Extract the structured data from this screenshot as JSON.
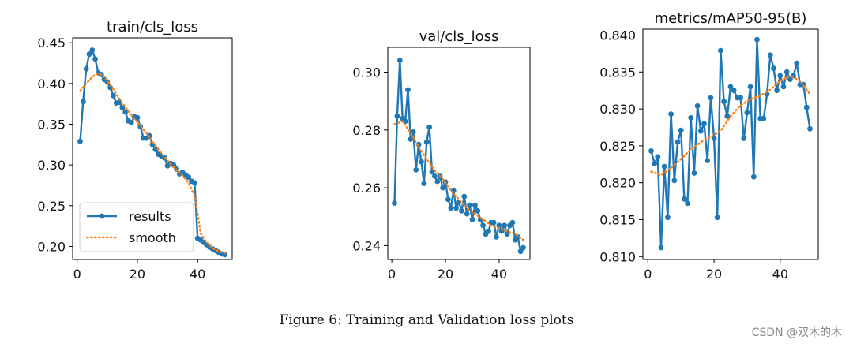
{
  "figure": {
    "caption": "Figure 6: Training and Validation loss plots",
    "watermark": "CSDN @双木的木"
  },
  "chart_data": [
    {
      "type": "line",
      "title": "train/cls_loss",
      "xlabel": "",
      "ylabel": "",
      "xlim": [
        -1.5,
        51.5
      ],
      "ylim": [
        0.184,
        0.456
      ],
      "xticks": [
        0,
        20,
        40
      ],
      "yticks": [
        0.2,
        0.25,
        0.3,
        0.35,
        0.4,
        0.45
      ],
      "ytick_labels": [
        "0.20",
        "0.25",
        "0.30",
        "0.35",
        "0.40",
        "0.45"
      ],
      "legend": {
        "position": "lower-left",
        "entries": [
          "results",
          "smooth"
        ]
      },
      "series": [
        {
          "name": "results",
          "style": "line-markers",
          "color": "#1f77b4",
          "x": [
            1,
            2,
            3,
            4,
            5,
            6,
            7,
            8,
            9,
            10,
            11,
            12,
            13,
            14,
            15,
            16,
            17,
            18,
            19,
            20,
            21,
            22,
            23,
            24,
            25,
            26,
            27,
            28,
            29,
            30,
            31,
            32,
            33,
            34,
            35,
            36,
            37,
            38,
            39,
            40,
            41,
            42,
            43,
            44,
            45,
            46,
            47,
            48,
            49
          ],
          "values": [
            0.329,
            0.378,
            0.418,
            0.436,
            0.441,
            0.43,
            0.413,
            0.411,
            0.405,
            0.402,
            0.395,
            0.385,
            0.376,
            0.377,
            0.37,
            0.365,
            0.354,
            0.352,
            0.359,
            0.358,
            0.347,
            0.333,
            0.333,
            0.336,
            0.325,
            0.319,
            0.313,
            0.311,
            0.309,
            0.299,
            0.302,
            0.3,
            0.295,
            0.289,
            0.291,
            0.288,
            0.285,
            0.28,
            0.278,
            0.21,
            0.208,
            0.205,
            0.202,
            0.199,
            0.197,
            0.195,
            0.193,
            0.191,
            0.19
          ]
        },
        {
          "name": "smooth",
          "style": "dotted",
          "color": "#ff7f0e",
          "x": [
            1,
            3,
            5,
            7,
            9,
            11,
            13,
            15,
            17,
            19,
            21,
            23,
            25,
            27,
            29,
            31,
            33,
            35,
            37,
            38,
            39,
            40,
            41,
            43,
            45,
            47,
            49
          ],
          "values": [
            0.391,
            0.4,
            0.408,
            0.413,
            0.408,
            0.399,
            0.387,
            0.376,
            0.366,
            0.357,
            0.348,
            0.339,
            0.329,
            0.319,
            0.31,
            0.301,
            0.294,
            0.287,
            0.278,
            0.27,
            0.262,
            0.24,
            0.216,
            0.205,
            0.198,
            0.194,
            0.192
          ]
        }
      ]
    },
    {
      "type": "line",
      "title": "val/cls_loss",
      "xlabel": "",
      "ylabel": "",
      "xlim": [
        -1.5,
        51.5
      ],
      "ylim": [
        0.2352,
        0.3086
      ],
      "xticks": [
        0,
        20,
        40
      ],
      "yticks": [
        0.24,
        0.26,
        0.28,
        0.3
      ],
      "ytick_labels": [
        "0.24",
        "0.26",
        "0.28",
        "0.30"
      ],
      "series": [
        {
          "name": "results",
          "style": "line-markers",
          "color": "#1f77b4",
          "x": [
            1,
            2,
            3,
            4,
            5,
            6,
            7,
            8,
            9,
            10,
            11,
            12,
            13,
            14,
            15,
            16,
            17,
            18,
            19,
            20,
            21,
            22,
            23,
            24,
            25,
            26,
            27,
            28,
            29,
            30,
            31,
            32,
            33,
            34,
            35,
            36,
            37,
            38,
            39,
            40,
            41,
            42,
            43,
            44,
            45,
            46,
            47,
            48,
            49
          ],
          "values": [
            0.2547,
            0.2848,
            0.3041,
            0.284,
            0.283,
            0.2939,
            0.2768,
            0.2793,
            0.2662,
            0.275,
            0.269,
            0.2615,
            0.2758,
            0.281,
            0.2655,
            0.264,
            0.2622,
            0.264,
            0.26,
            0.262,
            0.256,
            0.253,
            0.259,
            0.253,
            0.255,
            0.252,
            0.257,
            0.251,
            0.254,
            0.249,
            0.254,
            0.252,
            0.249,
            0.247,
            0.244,
            0.245,
            0.248,
            0.248,
            0.243,
            0.247,
            0.245,
            0.247,
            0.244,
            0.247,
            0.248,
            0.242,
            0.243,
            0.238,
            0.2393
          ]
        },
        {
          "name": "smooth",
          "style": "dotted",
          "color": "#ff7f0e",
          "x": [
            1,
            4,
            7,
            10,
            13,
            16,
            19,
            22,
            25,
            28,
            31,
            34,
            37,
            40,
            43,
            46,
            49
          ],
          "values": [
            0.282,
            0.283,
            0.279,
            0.274,
            0.27,
            0.266,
            0.263,
            0.259,
            0.256,
            0.253,
            0.251,
            0.249,
            0.247,
            0.246,
            0.245,
            0.244,
            0.242
          ]
        }
      ]
    },
    {
      "type": "line",
      "title": "metrics/mAP50-95(B)",
      "xlabel": "",
      "ylabel": "",
      "xlim": [
        -1.5,
        51.5
      ],
      "ylim": [
        0.8096,
        0.8408
      ],
      "xticks": [
        0,
        20,
        40
      ],
      "yticks": [
        0.81,
        0.815,
        0.82,
        0.825,
        0.83,
        0.835,
        0.84
      ],
      "ytick_labels": [
        "0.810",
        "0.815",
        "0.820",
        "0.825",
        "0.830",
        "0.835",
        "0.840"
      ],
      "series": [
        {
          "name": "results",
          "style": "line-markers",
          "color": "#1f77b4",
          "x": [
            1,
            2,
            3,
            4,
            5,
            6,
            7,
            8,
            9,
            10,
            11,
            12,
            13,
            14,
            15,
            16,
            17,
            18,
            19,
            20,
            21,
            22,
            23,
            24,
            25,
            26,
            27,
            28,
            29,
            30,
            31,
            32,
            33,
            34,
            35,
            36,
            37,
            38,
            39,
            40,
            41,
            42,
            43,
            44,
            45,
            46,
            47,
            48,
            49
          ],
          "values": [
            0.8243,
            0.8226,
            0.8235,
            0.8112,
            0.8222,
            0.8153,
            0.8293,
            0.8203,
            0.8255,
            0.8271,
            0.8178,
            0.8172,
            0.8288,
            0.8213,
            0.8304,
            0.827,
            0.828,
            0.823,
            0.8315,
            0.826,
            0.8153,
            0.8379,
            0.831,
            0.829,
            0.833,
            0.8325,
            0.8315,
            0.8315,
            0.826,
            0.8295,
            0.833,
            0.8208,
            0.8394,
            0.8287,
            0.8287,
            0.832,
            0.8373,
            0.8355,
            0.8325,
            0.8345,
            0.833,
            0.835,
            0.834,
            0.8345,
            0.8362,
            0.8333,
            0.8333,
            0.8302,
            0.8273
          ]
        },
        {
          "name": "smooth",
          "style": "dotted",
          "color": "#ff7f0e",
          "x": [
            1,
            4,
            7,
            10,
            13,
            16,
            19,
            22,
            25,
            28,
            31,
            34,
            37,
            40,
            43,
            46,
            49
          ],
          "values": [
            0.8215,
            0.821,
            0.822,
            0.8232,
            0.8245,
            0.8255,
            0.8262,
            0.827,
            0.829,
            0.8305,
            0.8313,
            0.8318,
            0.8326,
            0.8338,
            0.8345,
            0.8338,
            0.832
          ]
        }
      ]
    }
  ]
}
